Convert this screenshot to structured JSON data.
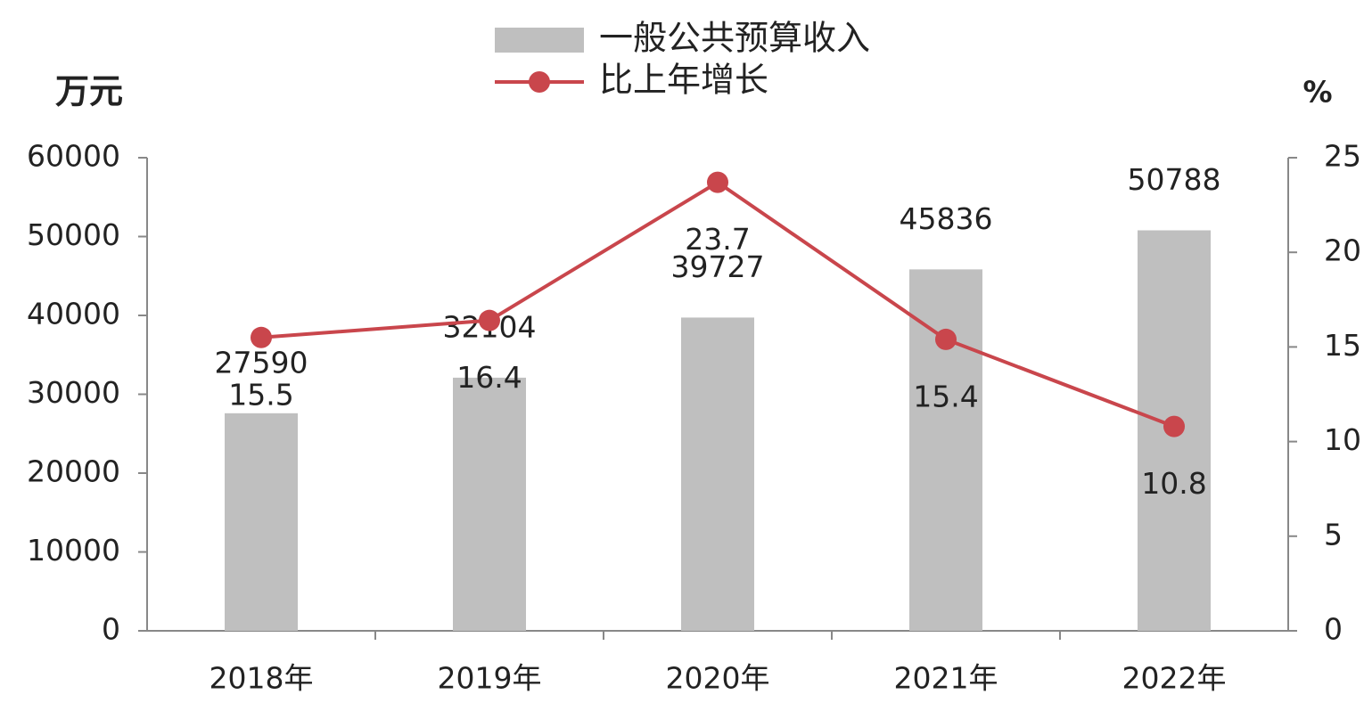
{
  "chart_data": {
    "type": "bar",
    "y_label": "万元",
    "y2_label": "%",
    "categories": [
      "2018年",
      "2019年",
      "2020年",
      "2021年",
      "2022年"
    ],
    "series": [
      {
        "name": "一般公共预算收入",
        "type": "bar",
        "color": "#bfbfbf",
        "values": [
          27590,
          32104,
          39727,
          45836,
          50788
        ]
      },
      {
        "name": "比上年增长",
        "type": "line",
        "axis": "y2",
        "color": "#c9464c",
        "values": [
          15.5,
          16.4,
          23.7,
          15.4,
          10.8
        ]
      }
    ],
    "ylim": [
      0,
      60000
    ],
    "yticks": [
      0,
      10000,
      20000,
      30000,
      40000,
      50000,
      60000
    ],
    "y2lim": [
      0,
      25
    ],
    "y2ticks": [
      0,
      5,
      10,
      15,
      20,
      25
    ],
    "grid": false,
    "legend": "top"
  }
}
